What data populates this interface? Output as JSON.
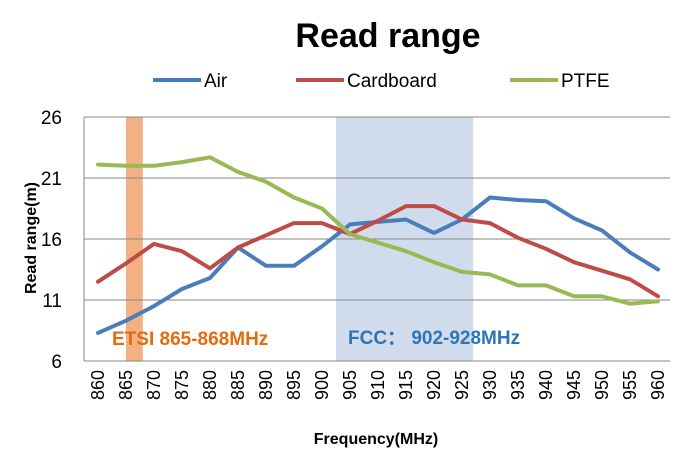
{
  "chart_data": {
    "type": "line",
    "title": "Read range",
    "xlabel": "Frequency(MHz)",
    "ylabel": "Read range(m)",
    "ylim": [
      6,
      26
    ],
    "yticks": [
      "6",
      "11",
      "16",
      "21",
      "26"
    ],
    "categories": [
      "860",
      "865",
      "870",
      "875",
      "880",
      "885",
      "890",
      "895",
      "900",
      "905",
      "910",
      "915",
      "920",
      "925",
      "930",
      "935",
      "940",
      "945",
      "950",
      "955",
      "960"
    ],
    "series": [
      {
        "name": "Air",
        "color": "#4a7ebb",
        "values": [
          8.3,
          9.3,
          10.5,
          11.9,
          12.8,
          15.3,
          13.8,
          13.8,
          15.4,
          17.2,
          17.4,
          17.6,
          16.5,
          17.6,
          19.4,
          19.2,
          19.1,
          17.7,
          16.7,
          14.9,
          13.5
        ]
      },
      {
        "name": "Cardboard",
        "color": "#be4b48",
        "values": [
          12.5,
          14.0,
          15.6,
          15.0,
          13.6,
          15.3,
          16.3,
          17.3,
          17.3,
          16.4,
          17.5,
          18.7,
          18.7,
          17.6,
          17.3,
          16.1,
          15.2,
          14.1,
          13.4,
          12.7,
          11.3
        ]
      },
      {
        "name": "PTFE",
        "color": "#98b954",
        "values": [
          22.1,
          22.0,
          22.0,
          22.3,
          22.7,
          21.5,
          20.7,
          19.4,
          18.5,
          16.4,
          15.7,
          15.0,
          14.1,
          13.3,
          13.1,
          12.2,
          12.2,
          11.3,
          11.3,
          10.7,
          10.9
        ]
      }
    ],
    "bands": [
      {
        "label": "ETSI 865-868MHz",
        "x_start": 865,
        "x_end": 868,
        "fill": "#f2b183",
        "text_color": "#e46c0a"
      },
      {
        "label": "FCC： 902-928MHz",
        "x_start": 902.5,
        "x_end": 927,
        "fill": "#d0dcec",
        "text_color": "#2e75b6"
      }
    ],
    "legend_position": "top-center",
    "grid": true
  }
}
